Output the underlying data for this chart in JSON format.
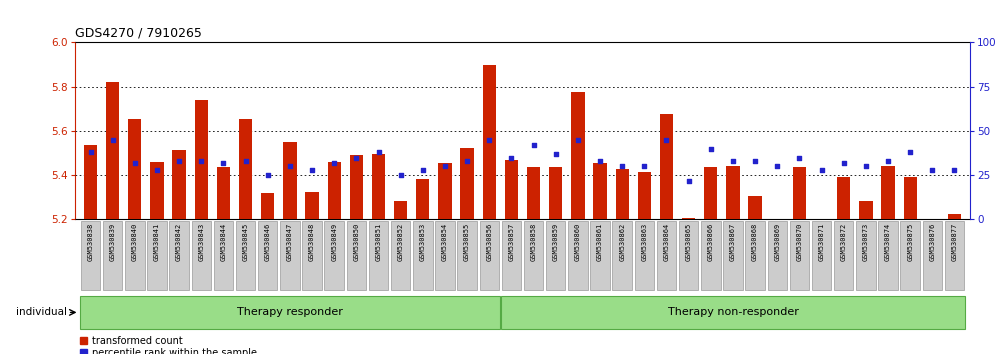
{
  "title": "GDS4270 / 7910265",
  "samples": [
    "GSM530838",
    "GSM530839",
    "GSM530840",
    "GSM530841",
    "GSM530842",
    "GSM530843",
    "GSM530844",
    "GSM530845",
    "GSM530846",
    "GSM530847",
    "GSM530848",
    "GSM530849",
    "GSM530850",
    "GSM530851",
    "GSM530852",
    "GSM530853",
    "GSM530854",
    "GSM530855",
    "GSM530856",
    "GSM530857",
    "GSM530858",
    "GSM530859",
    "GSM530860",
    "GSM530861",
    "GSM530862",
    "GSM530863",
    "GSM530864",
    "GSM530865",
    "GSM530866",
    "GSM530867",
    "GSM530868",
    "GSM530869",
    "GSM530870",
    "GSM530871",
    "GSM530872",
    "GSM530873",
    "GSM530874",
    "GSM530875",
    "GSM530876",
    "GSM530877"
  ],
  "red_values": [
    5.535,
    5.82,
    5.655,
    5.46,
    5.515,
    5.74,
    5.435,
    5.655,
    5.32,
    5.55,
    5.325,
    5.46,
    5.49,
    5.495,
    5.285,
    5.385,
    5.455,
    5.525,
    5.9,
    5.47,
    5.435,
    5.435,
    5.775,
    5.455,
    5.43,
    5.415,
    5.675,
    5.205,
    5.435,
    5.44,
    5.305,
    5.19,
    5.435,
    5.195,
    5.39,
    5.285,
    5.44,
    5.39,
    5.19,
    5.225
  ],
  "blue_values": [
    38,
    45,
    32,
    28,
    33,
    33,
    32,
    33,
    25,
    30,
    28,
    32,
    35,
    38,
    25,
    28,
    30,
    33,
    45,
    35,
    42,
    37,
    45,
    33,
    30,
    30,
    45,
    22,
    40,
    33,
    33,
    30,
    35,
    28,
    32,
    30,
    33,
    38,
    28,
    28
  ],
  "ymin": 5.2,
  "ymax": 6.0,
  "yticks_left": [
    5.2,
    5.4,
    5.6,
    5.8,
    6.0
  ],
  "right_yticks": [
    0,
    25,
    50,
    75,
    100
  ],
  "group1_label": "Therapy responder",
  "group2_label": "Therapy non-responder",
  "group1_count": 19,
  "group2_count": 21,
  "legend_red": "transformed count",
  "legend_blue": "percentile rank within the sample",
  "individual_label": "individual",
  "bar_color": "#cc2200",
  "dot_color": "#2222cc",
  "group_bg_color": "#99dd88",
  "group_border_color": "#55aa44",
  "tick_label_bg": "#cccccc",
  "tick_label_border": "#999999",
  "left_axis_color": "#cc2200",
  "right_axis_color": "#2222cc",
  "bg_color": "#ffffff"
}
